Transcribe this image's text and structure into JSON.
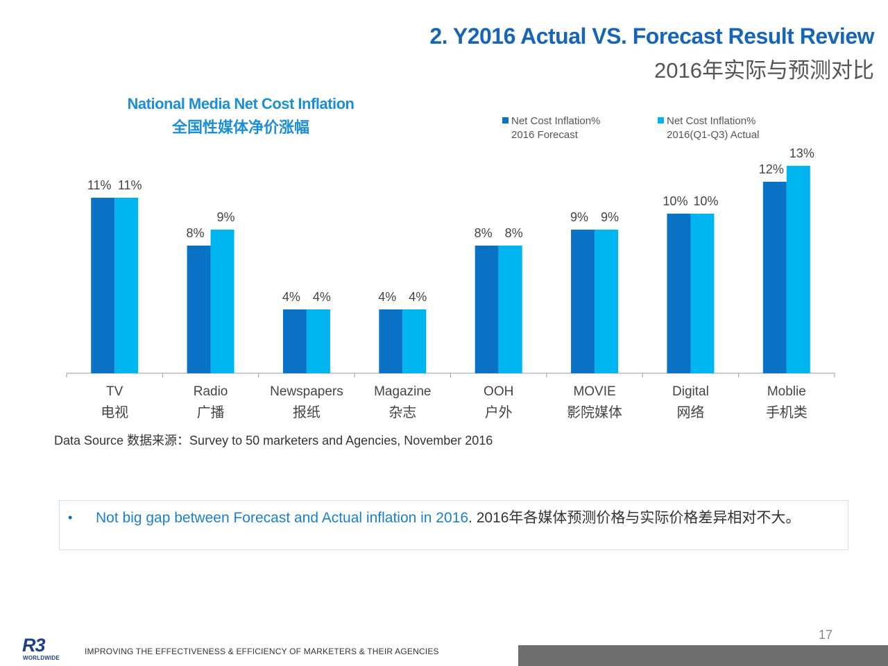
{
  "header": {
    "title_en": "2. Y2016 Actual VS. Forecast Result Review",
    "title_cn": "2016年实际与预测对比"
  },
  "chart_data": {
    "type": "bar",
    "title": "National Media Net Cost Inflation",
    "subtitle": "全国性媒体净价涨幅",
    "categories": [
      {
        "en": "TV",
        "cn": "电视"
      },
      {
        "en": "Radio",
        "cn": "广播"
      },
      {
        "en": "Newspapers",
        "cn": "报纸"
      },
      {
        "en": "Magazine",
        "cn": "杂志"
      },
      {
        "en": "OOH",
        "cn": "户外"
      },
      {
        "en": "MOVIE",
        "cn": "影院媒体"
      },
      {
        "en": "Digital",
        "cn": "网络"
      },
      {
        "en": "Moblie",
        "cn": "手机类"
      }
    ],
    "series": [
      {
        "name_line1": "Net Cost Inflation%",
        "name_line2": "2016 Forecast",
        "color": "#0a72c4",
        "values": [
          11,
          8,
          4,
          4,
          8,
          9,
          10,
          12
        ],
        "labels": [
          "11%",
          "8%",
          "4%",
          "4%",
          "8%",
          "9%",
          "10%",
          "12%"
        ]
      },
      {
        "name_line1": "Net Cost Inflation%",
        "name_line2": "2016(Q1-Q3) Actual",
        "color": "#00b4f0",
        "values": [
          11,
          9,
          4,
          4,
          8,
          9,
          10,
          13
        ],
        "labels": [
          "11%",
          "9%",
          "4%",
          "4%",
          "8%",
          "9%",
          "10%",
          "13%"
        ]
      }
    ],
    "ylim": [
      0,
      14
    ],
    "grid": false,
    "legend": "top-right",
    "axis_color": "#999999"
  },
  "footnote": {
    "data_source": "Data Source 数据来源：Survey to 50 marketers and Agencies, November 2016"
  },
  "note": {
    "bullet": "•",
    "highlight": "Not big gap between Forecast and Actual inflation in 2016",
    "rest": ". 2016年各媒体预测价格与实际价格差异相对不大。"
  },
  "footer": {
    "page_number": "17",
    "logo_text": "R3",
    "logo_subtext": "WORLDWIDE",
    "tagline": "IMPROVING THE EFFECTIVENESS & EFFICIENCY OF MARKETERS & THEIR AGENCIES"
  }
}
